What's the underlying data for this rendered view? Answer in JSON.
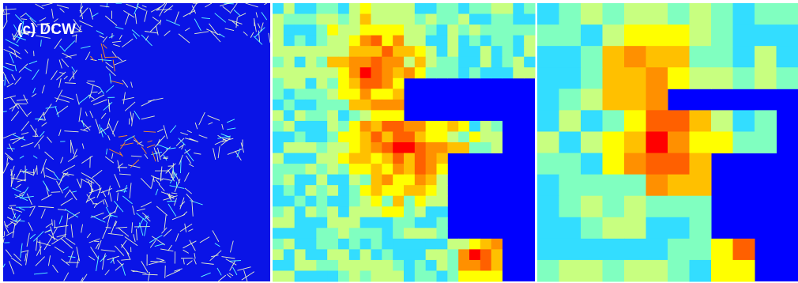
{
  "panel_label": "(c) DCW"
}
